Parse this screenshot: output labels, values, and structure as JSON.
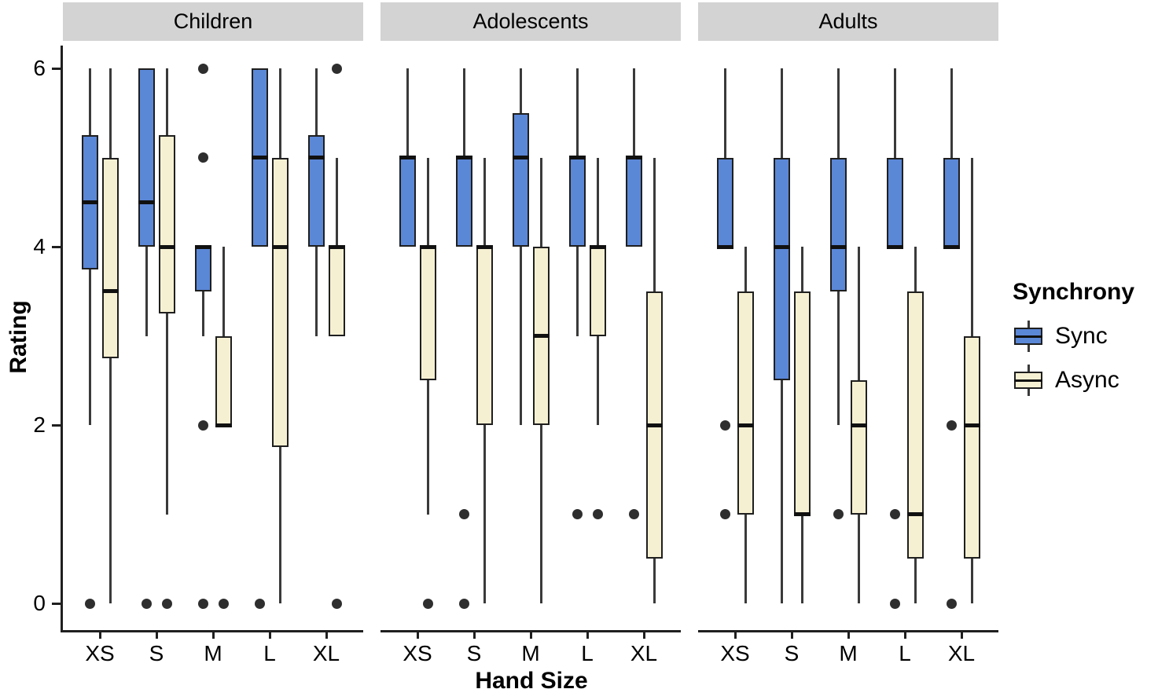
{
  "chart_data": {
    "type": "boxplot",
    "title": "",
    "xlabel": "Hand Size",
    "ylabel": "Rating",
    "ylim": [
      0,
      6
    ],
    "yticks": [
      0,
      2,
      4,
      6
    ],
    "grid": false,
    "categories": [
      "XS",
      "S",
      "M",
      "L",
      "XL"
    ],
    "series": [
      "Sync",
      "Async"
    ],
    "legend": {
      "title": "Synchrony",
      "position": "right",
      "entries": [
        {
          "label": "Sync",
          "fill": "#5b87d7"
        },
        {
          "label": "Async",
          "fill": "#f6f0d2"
        }
      ]
    },
    "facets": [
      {
        "label": "Children",
        "boxes": [
          {
            "category": "XS",
            "series": "Sync",
            "low": 2,
            "q1": 3.75,
            "median": 4.5,
            "q3": 5.25,
            "high": 6,
            "outliers": [
              0
            ]
          },
          {
            "category": "XS",
            "series": "Async",
            "low": 0,
            "q1": 2.75,
            "median": 3.5,
            "q3": 5,
            "high": 6,
            "outliers": []
          },
          {
            "category": "S",
            "series": "Sync",
            "low": 3,
            "q1": 4,
            "median": 4.5,
            "q3": 6,
            "high": 6,
            "outliers": [
              0
            ]
          },
          {
            "category": "S",
            "series": "Async",
            "low": 1,
            "q1": 3.25,
            "median": 4,
            "q3": 5.25,
            "high": 6,
            "outliers": [
              0
            ]
          },
          {
            "category": "M",
            "series": "Sync",
            "low": 3,
            "q1": 3.5,
            "median": 4,
            "q3": 4,
            "high": 4,
            "outliers": [
              6,
              5,
              2,
              0
            ]
          },
          {
            "category": "M",
            "series": "Async",
            "low": 2,
            "q1": 2,
            "median": 2,
            "q3": 3,
            "high": 4,
            "outliers": [
              0
            ]
          },
          {
            "category": "L",
            "series": "Sync",
            "low": 4,
            "q1": 4,
            "median": 5,
            "q3": 6,
            "high": 6,
            "outliers": [
              0
            ]
          },
          {
            "category": "L",
            "series": "Async",
            "low": 0,
            "q1": 1.75,
            "median": 4,
            "q3": 5,
            "high": 6,
            "outliers": []
          },
          {
            "category": "XL",
            "series": "Sync",
            "low": 3,
            "q1": 4,
            "median": 5,
            "q3": 5.25,
            "high": 6,
            "outliers": []
          },
          {
            "category": "XL",
            "series": "Async",
            "low": 3,
            "q1": 3,
            "median": 4,
            "q3": 4,
            "high": 5,
            "outliers": [
              6,
              0
            ]
          }
        ]
      },
      {
        "label": "Adolescents",
        "boxes": [
          {
            "category": "XS",
            "series": "Sync",
            "low": 4,
            "q1": 4,
            "median": 5,
            "q3": 5,
            "high": 6,
            "outliers": []
          },
          {
            "category": "XS",
            "series": "Async",
            "low": 1,
            "q1": 2.5,
            "median": 4,
            "q3": 4,
            "high": 5,
            "outliers": [
              0
            ]
          },
          {
            "category": "S",
            "series": "Sync",
            "low": 4,
            "q1": 4,
            "median": 5,
            "q3": 5,
            "high": 6,
            "outliers": [
              1,
              0
            ]
          },
          {
            "category": "S",
            "series": "Async",
            "low": 0,
            "q1": 2,
            "median": 4,
            "q3": 4,
            "high": 5,
            "outliers": []
          },
          {
            "category": "M",
            "series": "Sync",
            "low": 2,
            "q1": 4,
            "median": 5,
            "q3": 5.5,
            "high": 6,
            "outliers": []
          },
          {
            "category": "M",
            "series": "Async",
            "low": 0,
            "q1": 2,
            "median": 3,
            "q3": 4,
            "high": 5,
            "outliers": []
          },
          {
            "category": "L",
            "series": "Sync",
            "low": 3,
            "q1": 4,
            "median": 5,
            "q3": 5,
            "high": 6,
            "outliers": [
              1
            ]
          },
          {
            "category": "L",
            "series": "Async",
            "low": 2,
            "q1": 3,
            "median": 4,
            "q3": 4,
            "high": 5,
            "outliers": [
              1
            ]
          },
          {
            "category": "XL",
            "series": "Sync",
            "low": 4,
            "q1": 4,
            "median": 5,
            "q3": 5,
            "high": 6,
            "outliers": [
              1
            ]
          },
          {
            "category": "XL",
            "series": "Async",
            "low": 0,
            "q1": 0.5,
            "median": 2,
            "q3": 3.5,
            "high": 5,
            "outliers": []
          }
        ]
      },
      {
        "label": "Adults",
        "boxes": [
          {
            "category": "XS",
            "series": "Sync",
            "low": 4,
            "q1": 4,
            "median": 4,
            "q3": 5,
            "high": 6,
            "outliers": [
              2,
              1
            ]
          },
          {
            "category": "XS",
            "series": "Async",
            "low": 0,
            "q1": 1,
            "median": 2,
            "q3": 3.5,
            "high": 4,
            "outliers": []
          },
          {
            "category": "S",
            "series": "Sync",
            "low": 0,
            "q1": 2.5,
            "median": 4,
            "q3": 5,
            "high": 6,
            "outliers": []
          },
          {
            "category": "S",
            "series": "Async",
            "low": 0,
            "q1": 1,
            "median": 1,
            "q3": 3.5,
            "high": 4,
            "outliers": []
          },
          {
            "category": "M",
            "series": "Sync",
            "low": 2,
            "q1": 3.5,
            "median": 4,
            "q3": 5,
            "high": 6,
            "outliers": [
              1
            ]
          },
          {
            "category": "M",
            "series": "Async",
            "low": 0,
            "q1": 1,
            "median": 2,
            "q3": 2.5,
            "high": 4,
            "outliers": []
          },
          {
            "category": "L",
            "series": "Sync",
            "low": 4,
            "q1": 4,
            "median": 4,
            "q3": 5,
            "high": 6,
            "outliers": [
              1,
              0
            ]
          },
          {
            "category": "L",
            "series": "Async",
            "low": 0,
            "q1": 0.5,
            "median": 1,
            "q3": 3.5,
            "high": 4,
            "outliers": []
          },
          {
            "category": "XL",
            "series": "Sync",
            "low": 4,
            "q1": 4,
            "median": 4,
            "q3": 5,
            "high": 6,
            "outliers": [
              2,
              0
            ]
          },
          {
            "category": "XL",
            "series": "Async",
            "low": 0,
            "q1": 0.5,
            "median": 2,
            "q3": 3,
            "high": 5,
            "outliers": []
          }
        ]
      }
    ]
  },
  "colors": {
    "background": "#ffffff",
    "strip_bg": "#d3d3d3",
    "sync_fill": "#5b87d7",
    "async_fill": "#f6f0d2",
    "box_border": "#1f1f1f",
    "whisker": "#3a3a3a",
    "outlier_dot": "#2e2e2e",
    "text": "#000000"
  }
}
